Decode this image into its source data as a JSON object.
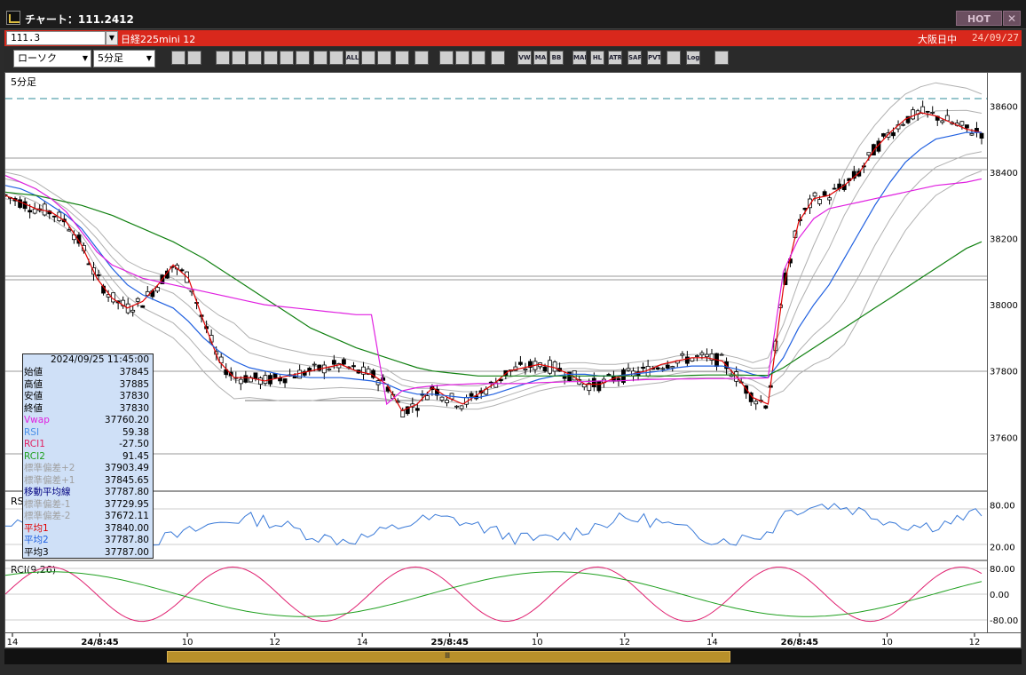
{
  "window": {
    "title": "チャート：111.2412",
    "hot_label": "HOT",
    "close_label": "✕"
  },
  "symbol": {
    "code": "111.3",
    "name": "日経225mini 12",
    "session": "大阪日中",
    "date": "24/09/27"
  },
  "toolbar": {
    "chart_type": "ローソク",
    "interval": "5分足",
    "icons": [
      "zoom-icon",
      "crosshair-icon",
      "pen-icon",
      "trendline-icon",
      "cursor-icon",
      "arrow-icon",
      "print-icon",
      "save-icon",
      "candle-a-icon",
      "candle-b-icon",
      "all-icon",
      "hand-icon",
      "search-chart-icon",
      "equal-icon",
      "plus-minus-icon",
      "blank-icon",
      "settings-icon",
      "brush-icon",
      "color-icon",
      "vwap-icon",
      "ma-icon",
      "bb-icon",
      "mae-icon",
      "hl-icon",
      "atr-icon",
      "sar-icon",
      "pvt-icon",
      "window-icon",
      "log-icon",
      "export-icon"
    ],
    "icon_labels": {
      "all": "ALL",
      "vwap": "VW",
      "ma": "MA",
      "bb": "BB",
      "mae": "MAE",
      "hl": "HL",
      "atr": "ATR",
      "sar": "SAR",
      "pvt": "PVT",
      "log": "Log"
    }
  },
  "main_panel": {
    "label": "5分足"
  },
  "rsi_panel": {
    "label": "RS"
  },
  "rci_panel": {
    "label": "RCI(9,26)"
  },
  "info_panel": {
    "header": "2024/09/25 11:45:00",
    "rows": [
      {
        "k": "始値",
        "v": "37845",
        "color": "#000000"
      },
      {
        "k": "高値",
        "v": "37885",
        "color": "#000000"
      },
      {
        "k": "安値",
        "v": "37830",
        "color": "#000000"
      },
      {
        "k": "終値",
        "v": "37830",
        "color": "#000000"
      },
      {
        "k": "Vwap",
        "v": "37760.20",
        "color": "#e020e0"
      },
      {
        "k": "RSI",
        "v": "59.38",
        "color": "#4a90e8"
      },
      {
        "k": "RCI1",
        "v": "-27.50",
        "color": "#e02060"
      },
      {
        "k": "RCI2",
        "v": "91.45",
        "color": "#20a020"
      },
      {
        "k": "標準偏差+2",
        "v": "37903.49",
        "color": "#a0a0a0"
      },
      {
        "k": "標準偏差+1",
        "v": "37845.65",
        "color": "#a0a0a0"
      },
      {
        "k": "移動平均線",
        "v": "37787.80",
        "color": "#000080"
      },
      {
        "k": "標準偏差-1",
        "v": "37729.95",
        "color": "#a0a0a0"
      },
      {
        "k": "標準偏差-2",
        "v": "37672.11",
        "color": "#a0a0a0"
      },
      {
        "k": "平均1",
        "v": "37840.00",
        "color": "#e00000"
      },
      {
        "k": "平均2",
        "v": "37787.80",
        "color": "#2060e0"
      },
      {
        "k": "平均3",
        "v": "37787.00",
        "color": "#000000"
      }
    ]
  },
  "chart_data": [
    {
      "type": "candlestick",
      "title": "5分足",
      "yticks": [
        37600,
        37800,
        38000,
        38200,
        38400,
        38600
      ],
      "ylim": [
        37440,
        38700
      ],
      "xticks": [
        "14",
        "24/8:45",
        "10",
        "12",
        "14",
        "25/8:45",
        "10",
        "12",
        "14",
        "26/8:45",
        "10",
        "12"
      ],
      "series": [
        {
          "name": "平均1",
          "color": "#e00000",
          "values": [
            38330,
            38310,
            38290,
            38280,
            38250,
            38180,
            38080,
            38020,
            37990,
            38010,
            38060,
            38120,
            38080,
            37950,
            37830,
            37780,
            37780,
            37770,
            37780,
            37790,
            37800,
            37810,
            37820,
            37800,
            37790,
            37760,
            37680,
            37700,
            37750,
            37720,
            37700,
            37730,
            37760,
            37800,
            37810,
            37820,
            37810,
            37790,
            37760,
            37760,
            37780,
            37790,
            37800,
            37820,
            37830,
            37840,
            37840,
            37830,
            37780,
            37720,
            37700,
            38050,
            38250,
            38320,
            38330,
            38360,
            38400,
            38470,
            38520,
            38560,
            38580,
            38570,
            38550,
            38530,
            38520
          ]
        },
        {
          "name": "平均2",
          "color": "#2060e0",
          "values": [
            38360,
            38350,
            38330,
            38300,
            38270,
            38230,
            38170,
            38110,
            38060,
            38030,
            38010,
            37990,
            37950,
            37900,
            37860,
            37830,
            37810,
            37800,
            37790,
            37785,
            37780,
            37780,
            37780,
            37775,
            37770,
            37760,
            37740,
            37730,
            37730,
            37725,
            37720,
            37720,
            37730,
            37745,
            37760,
            37775,
            37785,
            37790,
            37790,
            37785,
            37785,
            37790,
            37795,
            37800,
            37810,
            37815,
            37815,
            37815,
            37805,
            37790,
            37780,
            37840,
            37930,
            38000,
            38060,
            38140,
            38220,
            38300,
            38370,
            38430,
            38470,
            38500,
            38510,
            38520,
            38520
          ]
        },
        {
          "name": "平均3",
          "color": "#108010",
          "values": [
            38340,
            38335,
            38330,
            38320,
            38310,
            38300,
            38285,
            38270,
            38250,
            38230,
            38210,
            38190,
            38165,
            38140,
            38110,
            38080,
            38050,
            38020,
            37990,
            37960,
            37930,
            37910,
            37890,
            37870,
            37855,
            37840,
            37825,
            37810,
            37800,
            37795,
            37790,
            37785,
            37785,
            37785,
            37785,
            37785,
            37785,
            37785,
            37785,
            37785,
            37785,
            37785,
            37785,
            37785,
            37785,
            37787,
            37788,
            37788,
            37788,
            37787,
            37787,
            37810,
            37840,
            37870,
            37900,
            37930,
            37960,
            37990,
            38020,
            38050,
            38080,
            38110,
            38140,
            38170,
            38190
          ]
        },
        {
          "name": "Vwap",
          "color": "#e020e0",
          "values": [
            38390,
            38370,
            38350,
            38320,
            38280,
            38220,
            38160,
            38120,
            38100,
            38080,
            38070,
            38060,
            38050,
            38040,
            38030,
            38020,
            38010,
            38000,
            37995,
            37990,
            37985,
            37980,
            37975,
            37970,
            37970,
            37700,
            37740,
            37750,
            37755,
            37758,
            37760,
            37762,
            37762,
            37762,
            37762,
            37765,
            37766,
            37768,
            37768,
            37770,
            37770,
            37772,
            37774,
            37775,
            37776,
            37776,
            37777,
            37777,
            37778,
            37778,
            37779,
            38100,
            38200,
            38260,
            38290,
            38300,
            38310,
            38320,
            38330,
            38340,
            38350,
            38360,
            38365,
            38370,
            38380
          ]
        }
      ]
    },
    {
      "type": "line",
      "title": "RSI",
      "yticks": [
        20,
        80
      ],
      "ylim": [
        0,
        100
      ]
    },
    {
      "type": "line",
      "title": "RCI(9,26)",
      "yticks": [
        80,
        0,
        -80
      ],
      "ylim": [
        -100,
        100
      ]
    }
  ]
}
